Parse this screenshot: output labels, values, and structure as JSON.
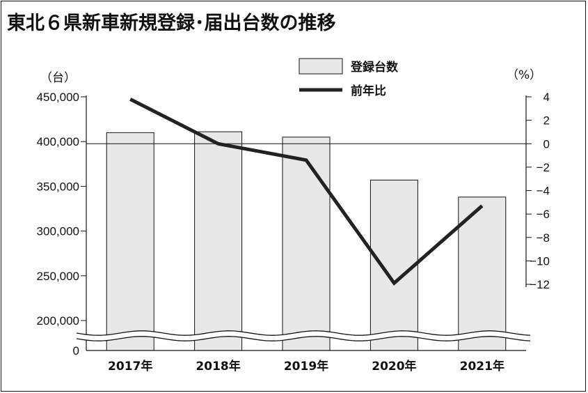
{
  "chart_data": {
    "type": "bar",
    "title": "東北６県新車新規登録･届出台数の推移",
    "categories": [
      "2017年",
      "2018年",
      "2019年",
      "2020年",
      "2021年"
    ],
    "series": [
      {
        "name": "登録台数",
        "type": "bar",
        "axis": "left",
        "values": [
          410000,
          411000,
          405000,
          357000,
          338000
        ]
      },
      {
        "name": "前年比",
        "type": "line",
        "axis": "right",
        "values": [
          3.8,
          0.0,
          -1.4,
          -11.9,
          -5.3
        ]
      }
    ],
    "left_axis": {
      "unit": "（台）",
      "ylim": [
        200000,
        450000
      ],
      "ticks": [
        "450,000",
        "400,000",
        "350,000",
        "300,000",
        "250,000",
        "200,000"
      ],
      "values": [
        450000,
        400000,
        350000,
        300000,
        250000,
        200000
      ],
      "zero_label": "0",
      "broken": true
    },
    "right_axis": {
      "unit": "（%）",
      "ylim": [
        -12,
        4
      ],
      "ticks": [
        "4",
        "2",
        "0",
        "−2",
        "−4",
        "−6",
        "−8",
        "−10",
        "−12"
      ],
      "values": [
        4,
        2,
        0,
        -2,
        -4,
        -6,
        -8,
        -10,
        -12
      ]
    },
    "legend_position": "top-center",
    "colors": {
      "bar_fill": "#e8e8e8",
      "bar_stroke": "#111111",
      "line": "#222222"
    }
  }
}
